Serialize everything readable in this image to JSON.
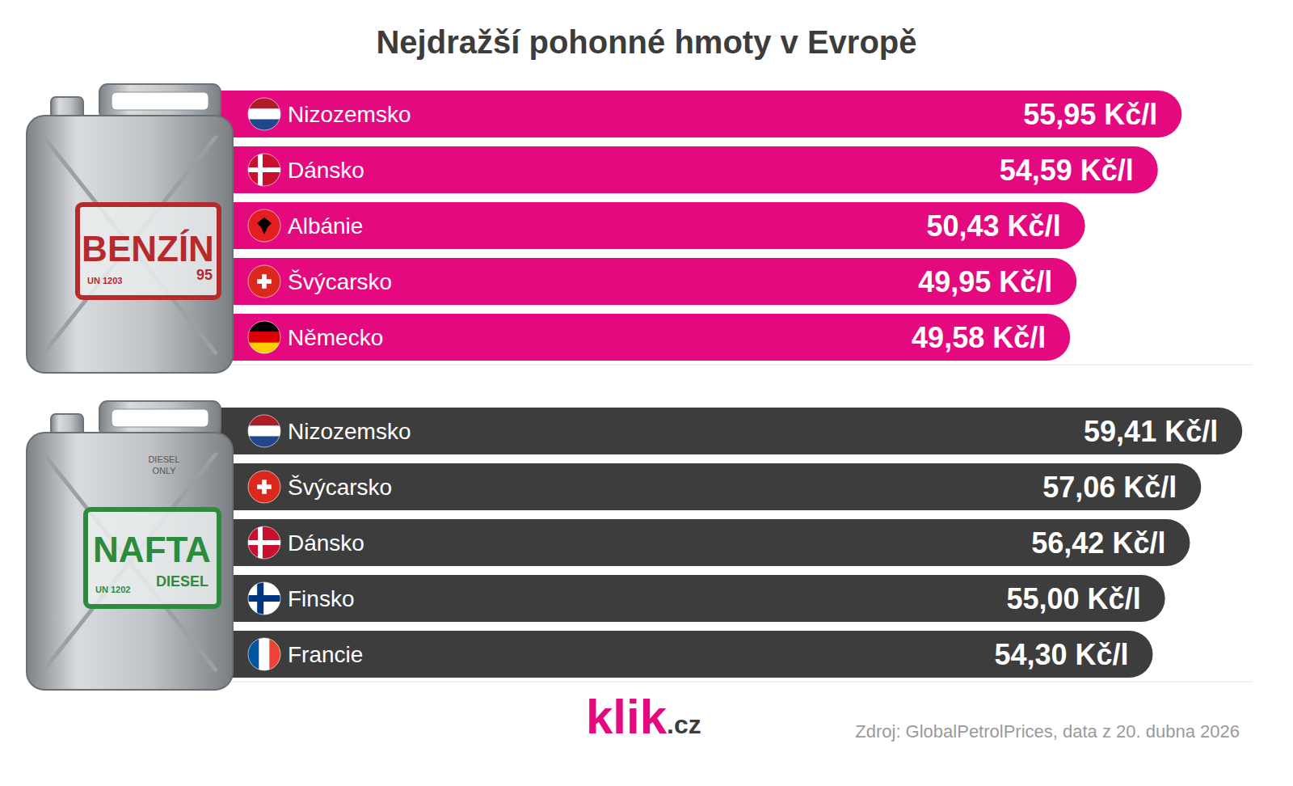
{
  "title": "Nejdražší pohonné hmoty v Evropě",
  "chart_data": [
    {
      "type": "bar",
      "orientation": "horizontal",
      "categories": [
        "Nizozemsko",
        "Dánsko",
        "Albánie",
        "Švýcarsko",
        "Německo"
      ],
      "values": [
        55.95,
        54.59,
        50.43,
        49.95,
        49.58
      ],
      "value_labels": [
        "55,95 Kč/l",
        "54,59 Kč/l",
        "50,43 Kč/l",
        "49,95 Kč/l",
        "49,58 Kč/l"
      ],
      "color": "#e5097f",
      "xlim": [
        0,
        60
      ],
      "data_labels": true,
      "tick_labels": false,
      "annotations": {
        "label": "BENZÍN",
        "code": "UN 1203",
        "grade": "95"
      }
    },
    {
      "type": "bar",
      "orientation": "horizontal",
      "categories": [
        "Nizozemsko",
        "Švýcarsko",
        "Dánsko",
        "Finsko",
        "Francie"
      ],
      "values": [
        59.41,
        57.06,
        56.42,
        55.0,
        54.3
      ],
      "value_labels": [
        "59,41 Kč/l",
        "57,06 Kč/l",
        "56,42 Kč/l",
        "55,00 Kč/l",
        "54,30 Kč/l"
      ],
      "color": "#3d3d3d",
      "xlim": [
        0,
        60
      ],
      "data_labels": true,
      "tick_labels": false,
      "annotations": {
        "label": "NAFTA",
        "sublabel": "DIESEL",
        "code": "UN 1202",
        "top_text": "DIESEL ONLY"
      }
    }
  ],
  "logo": {
    "main": "klik",
    "suffix": ".cz"
  },
  "source": "Zdroj: GlobalPetrolPrices, data z 20. dubna 2026"
}
